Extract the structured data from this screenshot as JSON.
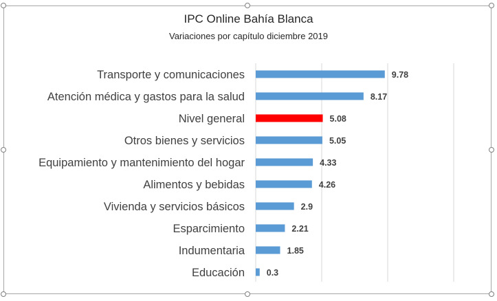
{
  "chart_data": {
    "type": "bar",
    "orientation": "horizontal",
    "title": "IPC Online Bahía Blanca",
    "subtitle": "Variaciones por capítulo diciembre 2019",
    "xlabel": "",
    "ylabel": "",
    "xlim": [
      0,
      15
    ],
    "grid": true,
    "categories": [
      "Transporte y comunicaciones",
      "Atención médica y gastos para la salud",
      "Nivel general",
      "Otros bienes y servicios",
      "Equipamiento y mantenimiento del hogar",
      "Alimentos y bebidas",
      "Vivienda y servicios básicos",
      "Esparcimiento",
      "Indumentaria",
      "Educación"
    ],
    "values": [
      9.78,
      8.17,
      5.08,
      5.05,
      4.33,
      4.26,
      2.9,
      2.21,
      1.85,
      0.3
    ],
    "value_labels": [
      "9.78",
      "8.17",
      "5.08",
      "5.05",
      "4.33",
      "4.26",
      "2.9",
      "2.21",
      "1.85",
      "0.3"
    ],
    "colors": [
      "#5b9bd5",
      "#5b9bd5",
      "#ff0000",
      "#5b9bd5",
      "#5b9bd5",
      "#5b9bd5",
      "#5b9bd5",
      "#5b9bd5",
      "#5b9bd5",
      "#5b9bd5"
    ],
    "gridline_color": "#d9d9d9"
  }
}
